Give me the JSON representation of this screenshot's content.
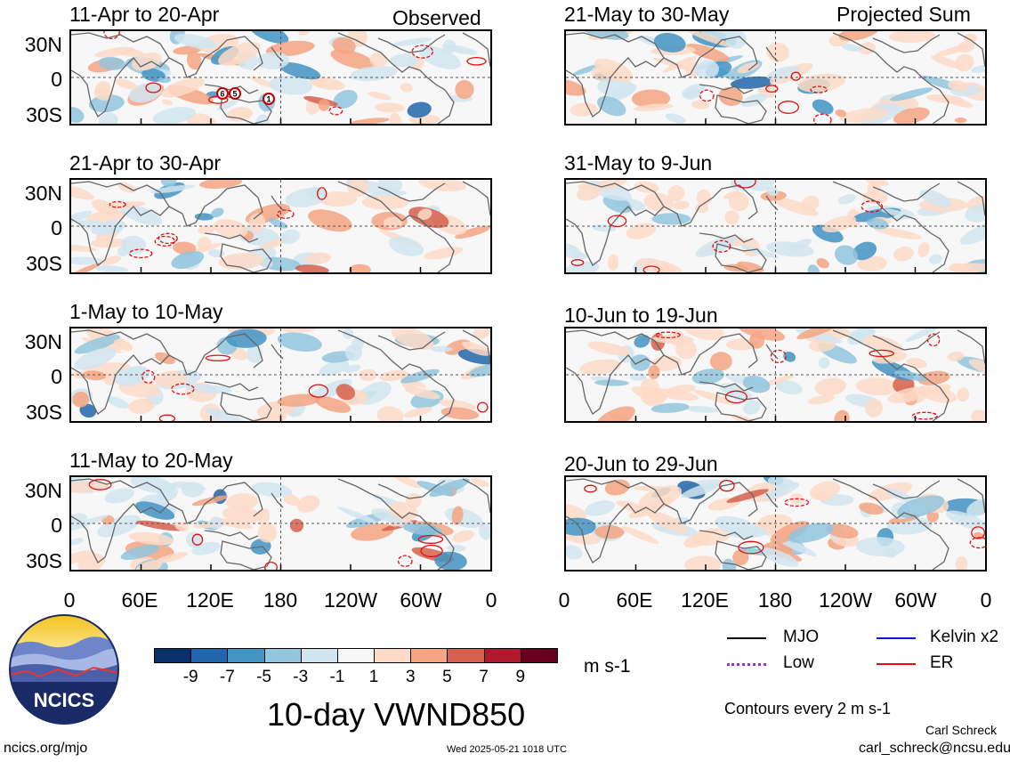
{
  "header": {
    "left_label": "Observed",
    "right_label": "Projected Sum"
  },
  "panels_left": [
    {
      "title": "11-Apr to 20-Apr"
    },
    {
      "title": "21-Apr to 30-Apr"
    },
    {
      "title": "1-May to 10-May"
    },
    {
      "title": "11-May to 20-May"
    }
  ],
  "panels_right": [
    {
      "title": "21-May to 30-May"
    },
    {
      "title": "31-May to 9-Jun"
    },
    {
      "title": "10-Jun to 19-Jun"
    },
    {
      "title": "20-Jun to 29-Jun"
    }
  ],
  "axes": {
    "y_ticks": [
      "30N",
      "0",
      "30S"
    ],
    "x_ticks": [
      "0",
      "60E",
      "120E",
      "180",
      "120W",
      "60W",
      "0"
    ]
  },
  "colorbar": {
    "colors": [
      "#08306b",
      "#2166ac",
      "#4393c3",
      "#92c5de",
      "#d1e5f0",
      "#f7f7f7",
      "#fddbc7",
      "#f4a582",
      "#d6604d",
      "#b2182b",
      "#67001f"
    ],
    "labels": [
      "-9",
      "-7",
      "-5",
      "-3",
      "-1",
      "1",
      "3",
      "5",
      "7",
      "9"
    ],
    "units": "m s-1"
  },
  "main_title": "10-day VWND850",
  "legend": {
    "items": [
      {
        "label": "MJO",
        "color": "#000000"
      },
      {
        "label": "Kelvin x2",
        "color": "#1010e0"
      },
      {
        "label": "Low",
        "color": "#9933cc"
      },
      {
        "label": "ER",
        "color": "#e01010"
      }
    ],
    "contour_note": "Contours every 2 m s-1"
  },
  "logo": {
    "text": "NCICS"
  },
  "footer": {
    "url": "ncics.org/mjo",
    "timestamp": "Wed 2025-05-21 1018 UTC",
    "author": "Carl Schreck",
    "email": "carl_schreck@ncsu.edu"
  },
  "storm_markers": [
    "6",
    "5",
    "1"
  ]
}
